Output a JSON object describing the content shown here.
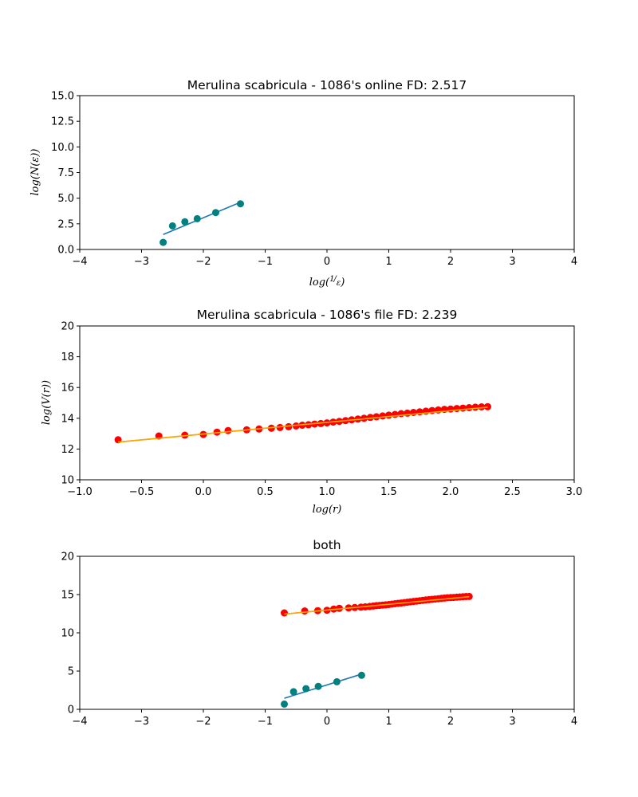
{
  "colors": {
    "online_points": "#00807f",
    "online_fit": "#1f77b4",
    "file_points": "#ff0000",
    "file_fit": "#ffa500"
  },
  "chart_data": [
    {
      "type": "scatter",
      "title": "Merulina scabricula - 1086's online FD: 2.517",
      "xlabel": "log(1/ε)",
      "ylabel": "log(N(ε))",
      "xlim": [
        -4,
        4
      ],
      "ylim": [
        0,
        15
      ],
      "xticks": [
        -4,
        -3,
        -2,
        -1,
        0,
        1,
        2,
        3,
        4
      ],
      "xtick_labels": [
        "−4",
        "−3",
        "−2",
        "−1",
        "0",
        "1",
        "2",
        "3",
        "4"
      ],
      "yticks": [
        0,
        2.5,
        5,
        7.5,
        10,
        12.5,
        15
      ],
      "ytick_labels": [
        "0.0",
        "2.5",
        "5.0",
        "7.5",
        "10.0",
        "12.5",
        "15.0"
      ],
      "grid": false,
      "series": [
        {
          "kind": "points",
          "color": "online_points",
          "x": [
            -2.65,
            -2.5,
            -2.3,
            -2.1,
            -1.8,
            -1.4
          ],
          "y": [
            0.69,
            2.3,
            2.7,
            3.0,
            3.6,
            4.45
          ]
        },
        {
          "kind": "line",
          "color": "online_fit",
          "x": [
            -2.65,
            -1.4
          ],
          "y": [
            1.45,
            4.6
          ]
        }
      ]
    },
    {
      "type": "scatter",
      "title": "Merulina scabricula - 1086's file FD:  2.239",
      "xlabel": "log(r)",
      "ylabel": "log(V(r))",
      "xlim": [
        -1.0,
        3.0
      ],
      "ylim": [
        10,
        20
      ],
      "xticks": [
        -1.0,
        -0.5,
        0.0,
        0.5,
        1.0,
        1.5,
        2.0,
        2.5,
        3.0
      ],
      "xtick_labels": [
        "−1.0",
        "−0.5",
        "0.0",
        "0.5",
        "1.0",
        "1.5",
        "2.0",
        "2.5",
        "3.0"
      ],
      "yticks": [
        10,
        12,
        14,
        16,
        18,
        20
      ],
      "ytick_labels": [
        "10",
        "12",
        "14",
        "16",
        "18",
        "20"
      ],
      "grid": false,
      "series": [
        {
          "kind": "points",
          "color": "file_points",
          "x": [
            -0.69,
            -0.36,
            -0.15,
            0.0,
            0.11,
            0.2,
            0.35,
            0.45,
            0.55,
            0.62,
            0.69,
            0.75,
            0.8,
            0.85,
            0.9,
            0.95,
            1.0,
            1.05,
            1.1,
            1.15,
            1.2,
            1.25,
            1.3,
            1.35,
            1.4,
            1.45,
            1.5,
            1.55,
            1.6,
            1.65,
            1.7,
            1.75,
            1.8,
            1.85,
            1.9,
            1.95,
            2.0,
            2.05,
            2.1,
            2.15,
            2.2,
            2.25,
            2.3
          ],
          "y": [
            12.6,
            12.85,
            12.9,
            12.95,
            13.1,
            13.2,
            13.25,
            13.3,
            13.35,
            13.4,
            13.45,
            13.5,
            13.55,
            13.58,
            13.62,
            13.66,
            13.7,
            13.75,
            13.8,
            13.85,
            13.9,
            13.95,
            14.0,
            14.05,
            14.1,
            14.15,
            14.2,
            14.25,
            14.3,
            14.33,
            14.38,
            14.42,
            14.46,
            14.5,
            14.54,
            14.58,
            14.6,
            14.63,
            14.66,
            14.69,
            14.72,
            14.74,
            14.75
          ]
        },
        {
          "kind": "line",
          "color": "file_fit",
          "x": [
            -0.69,
            2.3
          ],
          "y": [
            12.45,
            14.72
          ]
        }
      ]
    },
    {
      "type": "scatter",
      "title": "both",
      "xlabel": "",
      "ylabel": "",
      "xlim": [
        -4,
        4
      ],
      "ylim": [
        0,
        20
      ],
      "xticks": [
        -4,
        -3,
        -2,
        -1,
        0,
        1,
        2,
        3,
        4
      ],
      "xtick_labels": [
        "−4",
        "−3",
        "−2",
        "−1",
        "0",
        "1",
        "2",
        "3",
        "4"
      ],
      "yticks": [
        0,
        5,
        10,
        15,
        20
      ],
      "ytick_labels": [
        "0",
        "5",
        "10",
        "15",
        "20"
      ],
      "grid": false,
      "series": [
        {
          "kind": "points",
          "color": "file_points",
          "x": [
            -0.69,
            -0.36,
            -0.15,
            0.0,
            0.11,
            0.2,
            0.35,
            0.45,
            0.55,
            0.62,
            0.69,
            0.75,
            0.8,
            0.85,
            0.9,
            0.95,
            1.0,
            1.05,
            1.1,
            1.15,
            1.2,
            1.25,
            1.3,
            1.35,
            1.4,
            1.45,
            1.5,
            1.55,
            1.6,
            1.65,
            1.7,
            1.75,
            1.8,
            1.85,
            1.9,
            1.95,
            2.0,
            2.05,
            2.1,
            2.15,
            2.2,
            2.25,
            2.3
          ],
          "y": [
            12.6,
            12.85,
            12.9,
            12.95,
            13.1,
            13.2,
            13.25,
            13.3,
            13.35,
            13.4,
            13.45,
            13.5,
            13.55,
            13.58,
            13.62,
            13.66,
            13.7,
            13.75,
            13.8,
            13.85,
            13.9,
            13.95,
            14.0,
            14.05,
            14.1,
            14.15,
            14.2,
            14.25,
            14.3,
            14.33,
            14.38,
            14.42,
            14.46,
            14.5,
            14.54,
            14.58,
            14.6,
            14.63,
            14.66,
            14.69,
            14.72,
            14.74,
            14.75
          ]
        },
        {
          "kind": "line",
          "color": "file_fit",
          "x": [
            -0.69,
            2.3
          ],
          "y": [
            12.45,
            14.72
          ]
        },
        {
          "kind": "points",
          "color": "online_points",
          "x": [
            -0.69,
            -0.54,
            -0.34,
            -0.14,
            0.16,
            0.56
          ],
          "y": [
            0.69,
            2.3,
            2.7,
            3.0,
            3.6,
            4.45
          ]
        },
        {
          "kind": "line",
          "color": "online_fit",
          "x": [
            -0.69,
            0.56
          ],
          "y": [
            1.45,
            4.6
          ]
        }
      ]
    }
  ]
}
